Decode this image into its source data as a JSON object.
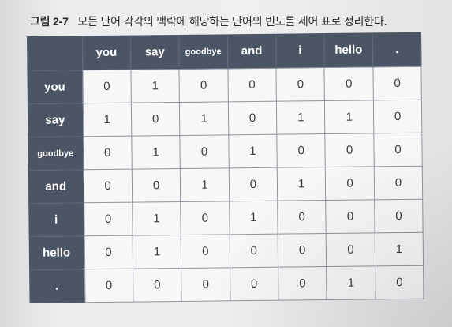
{
  "caption": {
    "label": "그림 2-7",
    "text": "모든 단어 각각의 맥락에 해당하는 단어의 빈도를 세어 표로 정리한다."
  },
  "table": {
    "columns": [
      "you",
      "say",
      "goodbye",
      "and",
      "i",
      "hello",
      "."
    ],
    "rows": [
      {
        "label": "you",
        "values": [
          "0",
          "1",
          "0",
          "0",
          "0",
          "0",
          "0"
        ]
      },
      {
        "label": "say",
        "values": [
          "1",
          "0",
          "1",
          "0",
          "1",
          "1",
          "0"
        ]
      },
      {
        "label": "goodbye",
        "values": [
          "0",
          "1",
          "0",
          "1",
          "0",
          "0",
          "0"
        ]
      },
      {
        "label": "and",
        "values": [
          "0",
          "0",
          "1",
          "0",
          "1",
          "0",
          "0"
        ]
      },
      {
        "label": "i",
        "values": [
          "0",
          "1",
          "0",
          "1",
          "0",
          "0",
          "0"
        ]
      },
      {
        "label": "hello",
        "values": [
          "0",
          "1",
          "0",
          "0",
          "0",
          "0",
          "1"
        ]
      },
      {
        "label": ".",
        "values": [
          "0",
          "0",
          "0",
          "0",
          "0",
          "1",
          "0"
        ]
      }
    ]
  },
  "colors": {
    "header_bg": "#4c5565",
    "header_text": "#ffffff",
    "cell_bg": "#f7f7f8",
    "cell_text": "#3a3a3a"
  }
}
